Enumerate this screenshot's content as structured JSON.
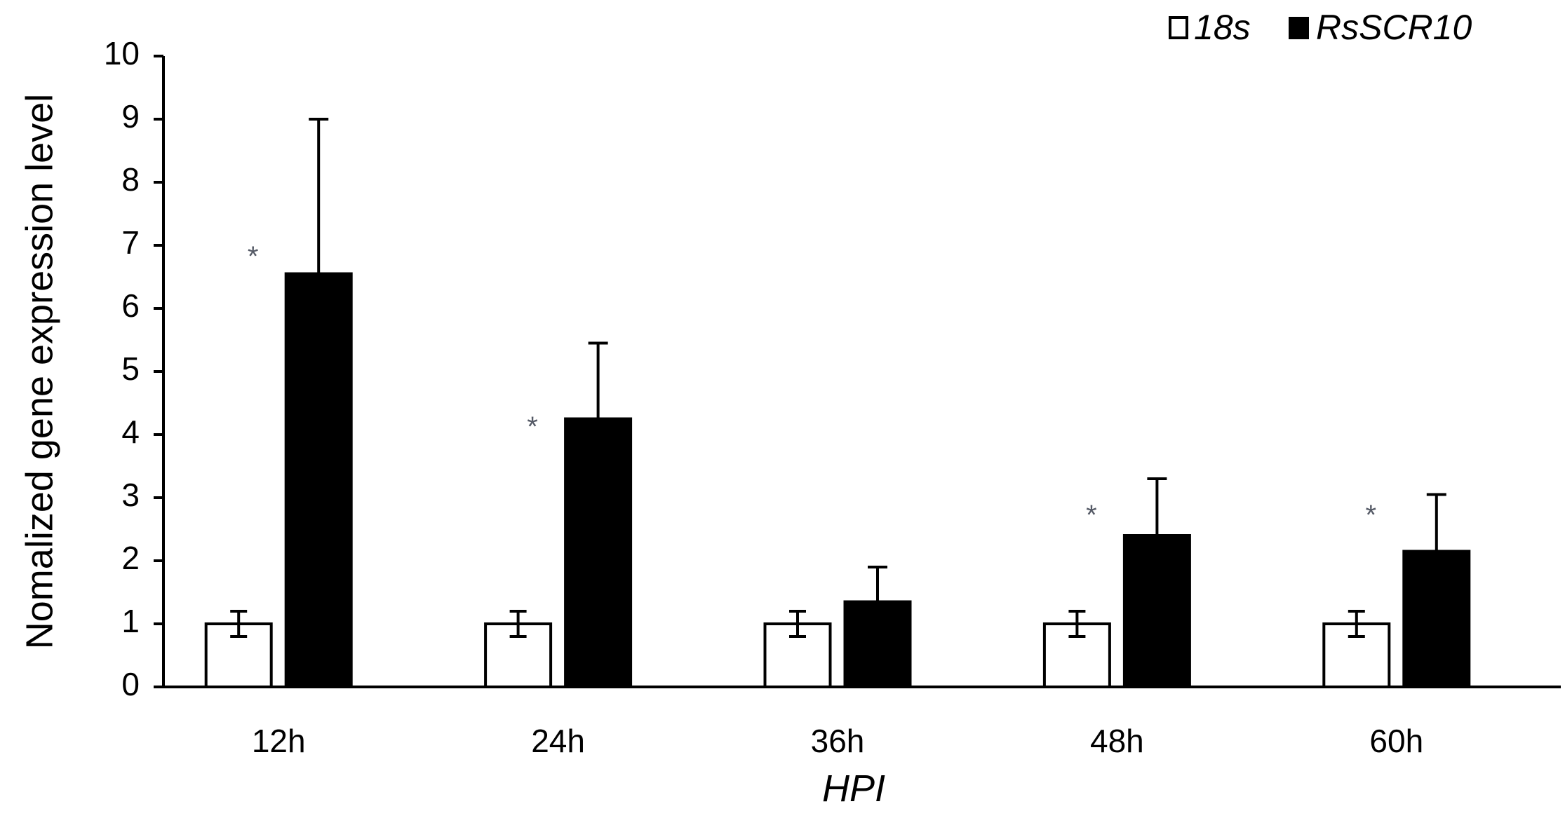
{
  "chart_data": {
    "type": "bar",
    "xlabel": "HPI",
    "ylabel": "Nomalized gene expression level",
    "ylim": [
      0,
      10
    ],
    "yticks": [
      0,
      1,
      2,
      3,
      4,
      5,
      6,
      7,
      8,
      9,
      10
    ],
    "grid": false,
    "legend_position": "top-right",
    "categories": [
      "12h",
      "24h",
      "36h",
      "48h",
      "60h"
    ],
    "series": [
      {
        "name": "18s",
        "color": "#ffffff",
        "values": [
          1.0,
          1.0,
          1.0,
          1.0,
          1.0
        ],
        "errors": [
          0.2,
          0.2,
          0.2,
          0.2,
          0.2
        ]
      },
      {
        "name": "RsSCR10",
        "color": "#000000",
        "values": [
          6.55,
          4.25,
          1.35,
          2.4,
          2.15
        ],
        "errors": [
          2.45,
          1.2,
          0.55,
          0.9,
          0.9
        ]
      }
    ],
    "annotations": [
      {
        "category": "12h",
        "text": "*",
        "y": 6.9
      },
      {
        "category": "24h",
        "text": "*",
        "y": 4.2
      },
      {
        "category": "48h",
        "text": "*",
        "y": 2.8
      },
      {
        "category": "60h",
        "text": "*",
        "y": 2.8
      }
    ]
  }
}
